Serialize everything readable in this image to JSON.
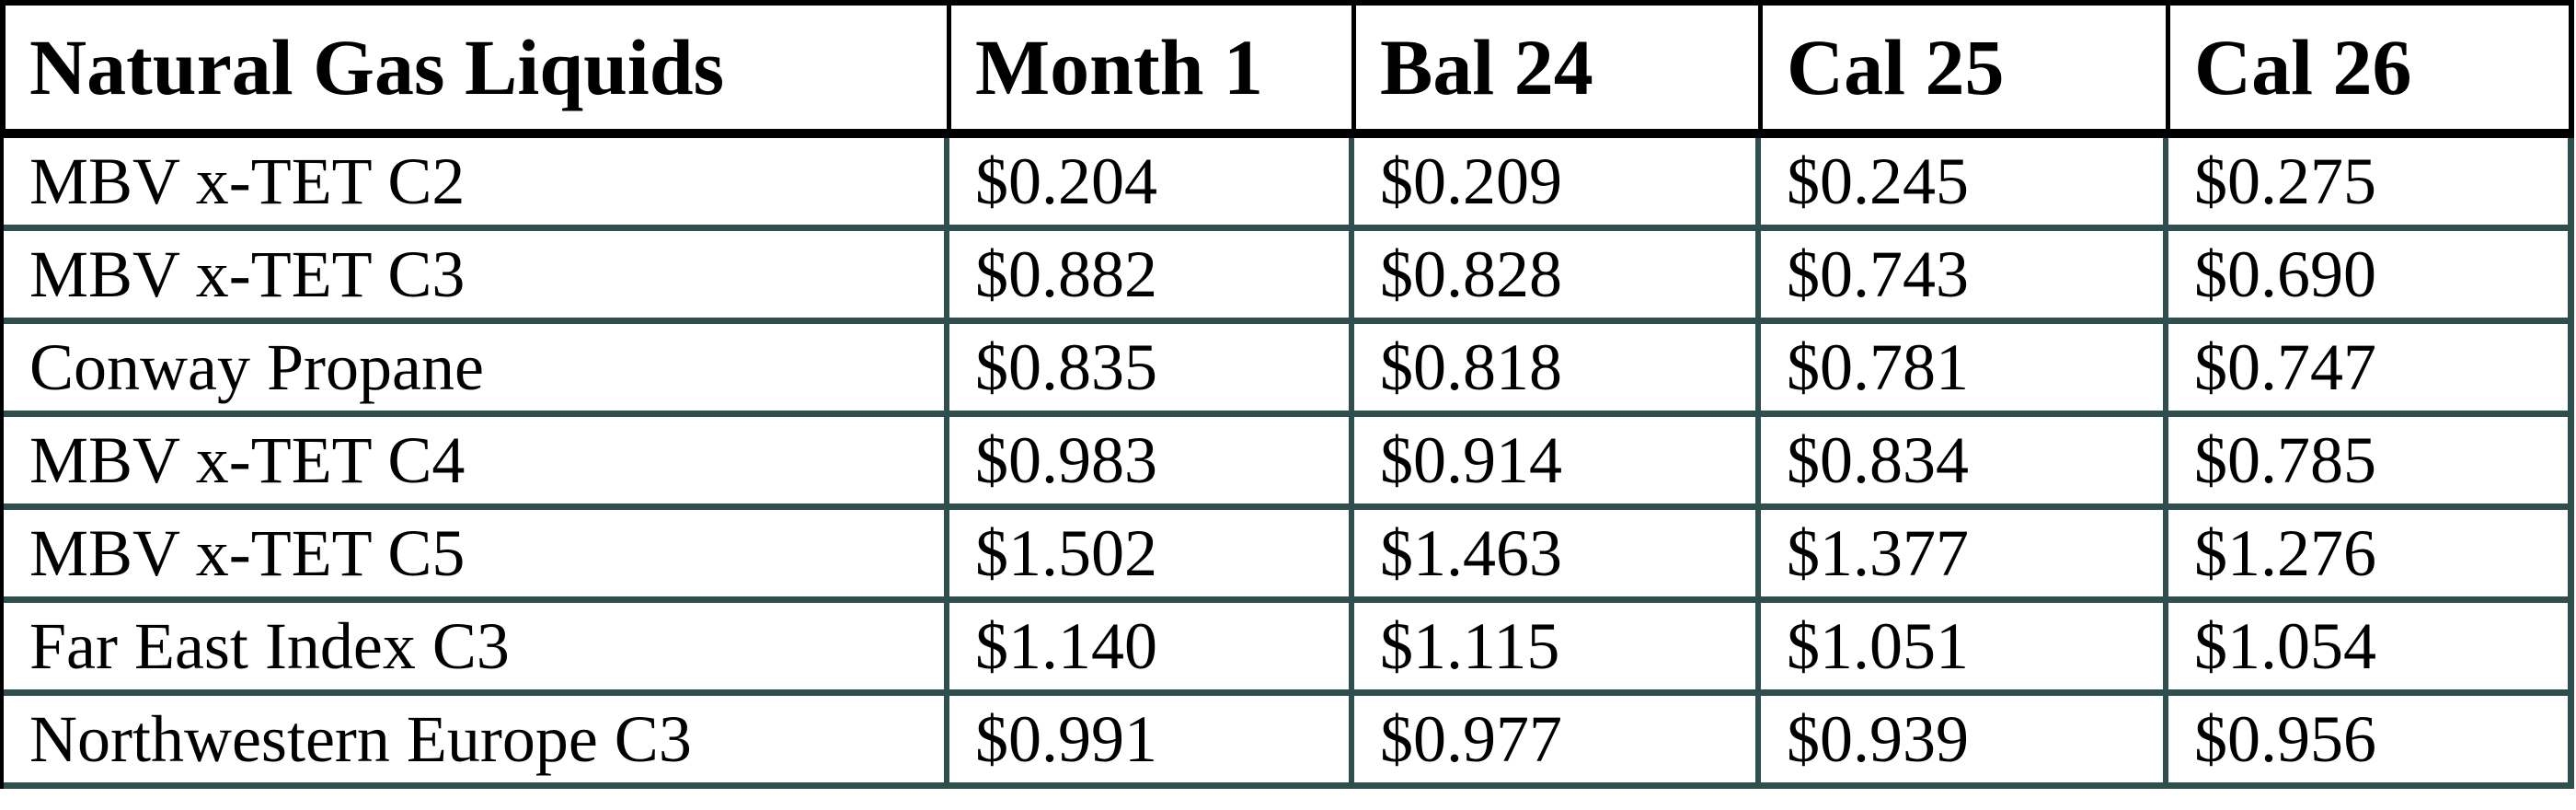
{
  "table": {
    "title_column_header": "Natural Gas Liquids",
    "column_headers": [
      "Month 1",
      "Bal 24",
      "Cal 25",
      "Cal 26"
    ],
    "rows": [
      {
        "label": "MBV x-TET C2",
        "values": [
          "$0.204",
          "$0.209",
          "$0.245",
          "$0.275"
        ]
      },
      {
        "label": "MBV x-TET C3",
        "values": [
          "$0.882",
          "$0.828",
          "$0.743",
          "$0.690"
        ]
      },
      {
        "label": "Conway Propane",
        "values": [
          "$0.835",
          "$0.818",
          "$0.781",
          "$0.747"
        ]
      },
      {
        "label": "MBV x-TET C4",
        "values": [
          "$0.983",
          "$0.914",
          "$0.834",
          "$0.785"
        ]
      },
      {
        "label": "MBV x-TET C5",
        "values": [
          "$1.502",
          "$1.463",
          "$1.377",
          "$1.276"
        ]
      },
      {
        "label": "Far East Index C3",
        "values": [
          "$1.140",
          "$1.115",
          "$1.051",
          "$1.054"
        ]
      },
      {
        "label": "Northwestern Europe C3",
        "values": [
          "$0.991",
          "$0.977",
          "$0.939",
          "$0.956"
        ]
      }
    ],
    "colors": {
      "grid_teal": "#2e4f4e",
      "border_black": "#000000",
      "background": "#ffffff",
      "text": "#000000"
    }
  },
  "chart_data": {
    "type": "table",
    "title": "Natural Gas Liquids",
    "categories": [
      "Month 1",
      "Bal 24",
      "Cal 25",
      "Cal 26"
    ],
    "units": "$ per unit",
    "series": [
      {
        "name": "MBV x-TET C2",
        "values": [
          0.204,
          0.209,
          0.245,
          0.275
        ]
      },
      {
        "name": "MBV x-TET C3",
        "values": [
          0.882,
          0.828,
          0.743,
          0.69
        ]
      },
      {
        "name": "Conway Propane",
        "values": [
          0.835,
          0.818,
          0.781,
          0.747
        ]
      },
      {
        "name": "MBV x-TET C4",
        "values": [
          0.983,
          0.914,
          0.834,
          0.785
        ]
      },
      {
        "name": "MBV x-TET C5",
        "values": [
          1.502,
          1.463,
          1.377,
          1.276
        ]
      },
      {
        "name": "Far East Index C3",
        "values": [
          1.14,
          1.115,
          1.051,
          1.054
        ]
      },
      {
        "name": "Northwestern Europe C3",
        "values": [
          0.991,
          0.977,
          0.939,
          0.956
        ]
      }
    ]
  }
}
